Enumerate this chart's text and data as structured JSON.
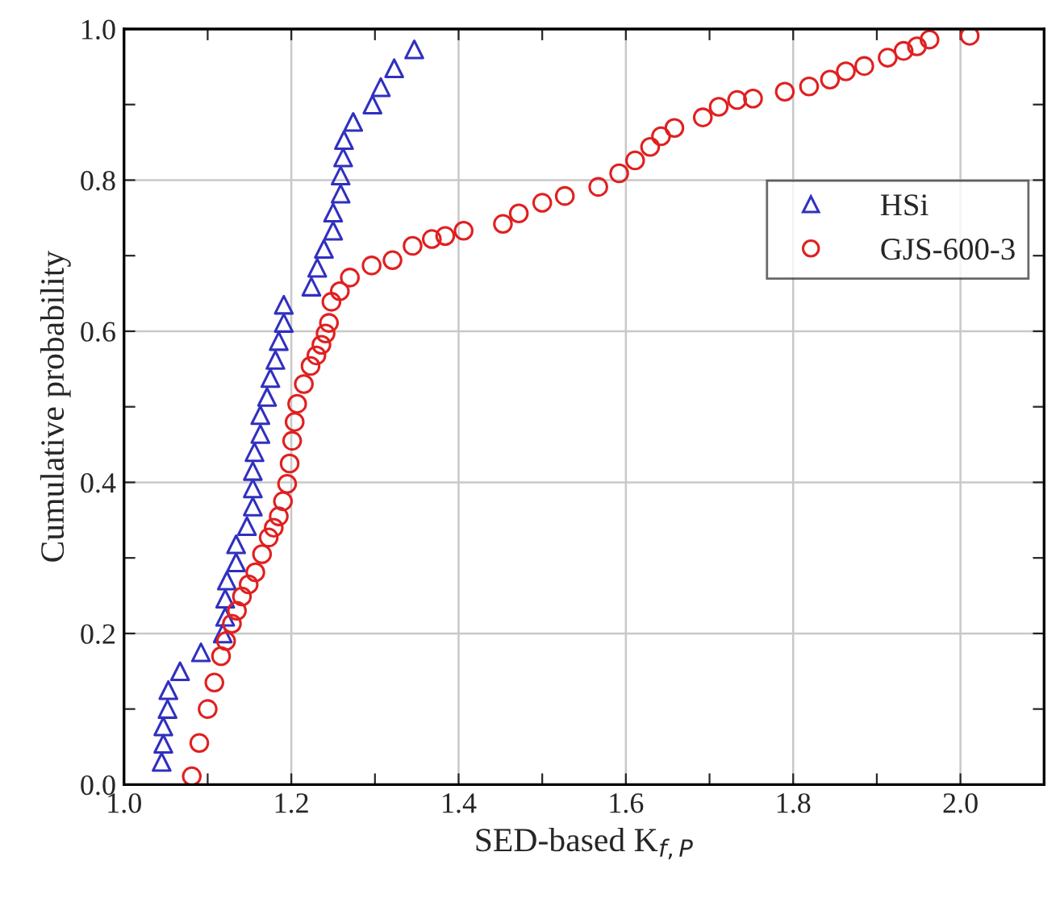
{
  "chart_data": {
    "type": "scatter",
    "xlabel": "SED-based K$_{f,P}$",
    "ylabel": "Cumulative probability",
    "xlim": [
      1.0,
      2.1
    ],
    "ylim": [
      0.0,
      1.0
    ],
    "xticks": [
      {
        "value": 1.0,
        "label": "1.0"
      },
      {
        "value": 1.1,
        "label": null
      },
      {
        "value": 1.2,
        "label": "1.2"
      },
      {
        "value": 1.3,
        "label": null
      },
      {
        "value": 1.4,
        "label": "1.4"
      },
      {
        "value": 1.5,
        "label": null
      },
      {
        "value": 1.6,
        "label": "1.6"
      },
      {
        "value": 1.7,
        "label": null
      },
      {
        "value": 1.8,
        "label": "1.8"
      },
      {
        "value": 1.9,
        "label": null
      },
      {
        "value": 2.0,
        "label": "2.0"
      }
    ],
    "yticks": [
      {
        "value": 0.0,
        "label": "0.0"
      },
      {
        "value": 0.1,
        "label": null
      },
      {
        "value": 0.2,
        "label": "0.2"
      },
      {
        "value": 0.3,
        "label": null
      },
      {
        "value": 0.4,
        "label": "0.4"
      },
      {
        "value": 0.5,
        "label": null
      },
      {
        "value": 0.6,
        "label": "0.6"
      },
      {
        "value": 0.7,
        "label": null
      },
      {
        "value": 0.8,
        "label": "0.8"
      },
      {
        "value": 0.9,
        "label": null
      },
      {
        "value": 1.0,
        "label": "1.0"
      }
    ],
    "grid": true,
    "legend": "top right",
    "series": [
      {
        "name": "HSi",
        "color": "#3030c0",
        "marker": "triangle",
        "x": [
          1.045,
          1.047,
          1.047,
          1.052,
          1.053,
          1.067,
          1.092,
          1.118,
          1.121,
          1.121,
          1.123,
          1.134,
          1.134,
          1.147,
          1.154,
          1.154,
          1.154,
          1.156,
          1.163,
          1.163,
          1.171,
          1.175,
          1.181,
          1.185,
          1.191,
          1.191,
          1.224,
          1.231,
          1.239,
          1.25,
          1.25,
          1.259,
          1.259,
          1.262,
          1.263,
          1.274,
          1.297,
          1.307,
          1.323,
          1.347
        ],
        "values": [
          0.03,
          0.054,
          0.077,
          0.1,
          0.125,
          0.15,
          0.175,
          0.2,
          0.222,
          0.246,
          0.27,
          0.294,
          0.318,
          0.342,
          0.368,
          0.392,
          0.415,
          0.44,
          0.464,
          0.489,
          0.513,
          0.538,
          0.562,
          0.587,
          0.611,
          0.635,
          0.659,
          0.684,
          0.709,
          0.733,
          0.757,
          0.782,
          0.806,
          0.83,
          0.853,
          0.877,
          0.9,
          0.923,
          0.948,
          0.973
        ]
      },
      {
        "name": "GJS-600-3",
        "color": "#e02020",
        "marker": "circle",
        "x": [
          1.081,
          1.09,
          1.1,
          1.108,
          1.116,
          1.122,
          1.129,
          1.135,
          1.141,
          1.149,
          1.157,
          1.165,
          1.173,
          1.179,
          1.185,
          1.19,
          1.195,
          1.198,
          1.201,
          1.204,
          1.207,
          1.215,
          1.223,
          1.23,
          1.236,
          1.241,
          1.245,
          1.248,
          1.258,
          1.27,
          1.296,
          1.321,
          1.345,
          1.368,
          1.384,
          1.406,
          1.453,
          1.472,
          1.5,
          1.527,
          1.567,
          1.592,
          1.611,
          1.629,
          1.642,
          1.658,
          1.692,
          1.711,
          1.733,
          1.752,
          1.79,
          1.819,
          1.844,
          1.863,
          1.885,
          1.913,
          1.932,
          1.948,
          1.963,
          2.011
        ],
        "values": [
          0.011,
          0.055,
          0.1,
          0.135,
          0.17,
          0.19,
          0.213,
          0.23,
          0.249,
          0.265,
          0.281,
          0.305,
          0.327,
          0.34,
          0.355,
          0.375,
          0.398,
          0.425,
          0.455,
          0.48,
          0.504,
          0.53,
          0.554,
          0.568,
          0.582,
          0.597,
          0.611,
          0.639,
          0.653,
          0.671,
          0.687,
          0.694,
          0.713,
          0.722,
          0.726,
          0.733,
          0.742,
          0.756,
          0.77,
          0.779,
          0.791,
          0.809,
          0.826,
          0.844,
          0.858,
          0.869,
          0.883,
          0.897,
          0.906,
          0.908,
          0.917,
          0.924,
          0.933,
          0.944,
          0.951,
          0.962,
          0.971,
          0.977,
          0.986,
          0.991
        ]
      }
    ]
  }
}
